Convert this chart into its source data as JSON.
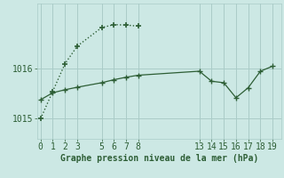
{
  "title": "Graphe pression niveau de la mer (hPa)",
  "bg_color": "#cce8e4",
  "grid_color": "#aaccc8",
  "line_color": "#2d5e35",
  "yticks": [
    1015,
    1016
  ],
  "ylim": [
    1014.6,
    1017.3
  ],
  "series1_x": [
    0,
    1,
    2,
    3,
    5,
    6,
    7,
    8
  ],
  "series1_y": [
    1015.0,
    1015.55,
    1016.1,
    1016.45,
    1016.82,
    1016.88,
    1016.87,
    1016.85
  ],
  "series2_x": [
    0,
    1,
    2,
    3,
    5,
    6,
    7,
    8,
    13,
    14,
    15,
    16,
    17,
    18,
    19
  ],
  "series2_y": [
    1015.38,
    1015.52,
    1015.58,
    1015.63,
    1015.72,
    1015.78,
    1015.83,
    1015.87,
    1015.95,
    1015.75,
    1015.72,
    1015.42,
    1015.62,
    1015.95,
    1016.05
  ],
  "xticks": [
    0,
    1,
    2,
    3,
    5,
    6,
    7,
    8,
    13,
    14,
    15,
    16,
    17,
    18,
    19
  ],
  "xlim": [
    -0.3,
    19.7
  ]
}
